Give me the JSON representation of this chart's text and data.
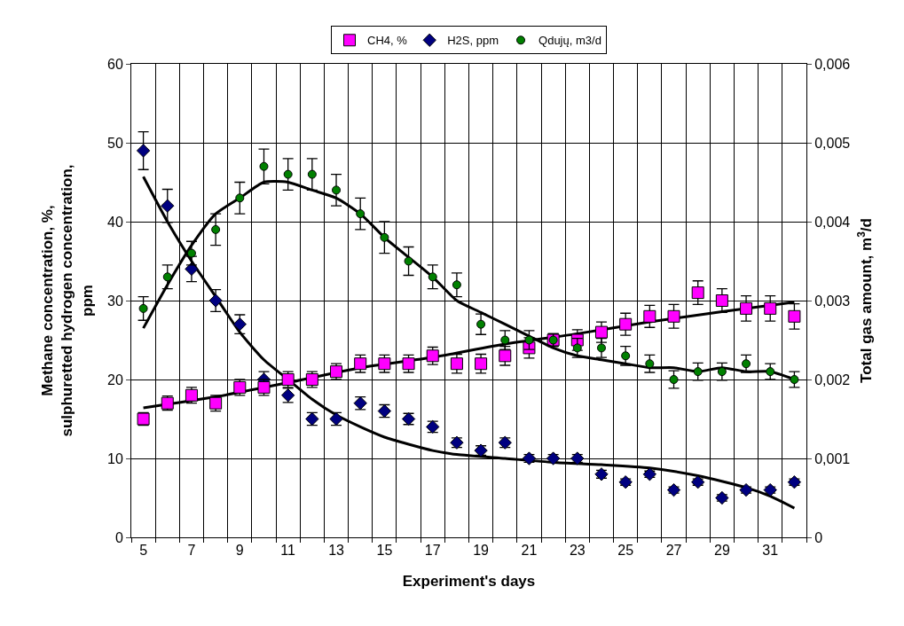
{
  "chart_data": {
    "type": "scatter",
    "xlabel": "Experiment's days",
    "ylabel": "Methane concentration, %,\nsulphuretted hydrogen concentration,\nppm",
    "y2label": "Total gas amount, m$^{3}$/d",
    "x": [
      5,
      6,
      7,
      8,
      9,
      10,
      11,
      12,
      13,
      14,
      15,
      16,
      17,
      18,
      19,
      20,
      21,
      22,
      23,
      24,
      25,
      26,
      27,
      28,
      29,
      30,
      31,
      32
    ],
    "xlim": [
      4.5,
      32.5
    ],
    "xticks": [
      5,
      7,
      9,
      11,
      13,
      15,
      17,
      19,
      21,
      23,
      25,
      27,
      29,
      31,
      {
        "value": 4.5,
        "label": null
      },
      {
        "value": 5.5,
        "label": null
      },
      {
        "value": 6.5,
        "label": null
      },
      {
        "value": 7.5,
        "label": null
      },
      {
        "value": 8.5,
        "label": null
      },
      {
        "value": 9.5,
        "label": null
      },
      {
        "value": 10.5,
        "label": null
      },
      {
        "value": 11.5,
        "label": null
      },
      {
        "value": 12.5,
        "label": null
      },
      {
        "value": 13.5,
        "label": null
      },
      {
        "value": 14.5,
        "label": null
      },
      {
        "value": 15.5,
        "label": null
      },
      {
        "value": 16.5,
        "label": null
      },
      {
        "value": 17.5,
        "label": null
      },
      {
        "value": 18.5,
        "label": null
      },
      {
        "value": 19.5,
        "label": null
      },
      {
        "value": 20.5,
        "label": null
      },
      {
        "value": 21.5,
        "label": null
      },
      {
        "value": 22.5,
        "label": null
      },
      {
        "value": 23.5,
        "label": null
      },
      {
        "value": 24.5,
        "label": null
      },
      {
        "value": 25.5,
        "label": null
      },
      {
        "value": 26.5,
        "label": null
      },
      {
        "value": 27.5,
        "label": null
      },
      {
        "value": 28.5,
        "label": null
      },
      {
        "value": 29.5,
        "label": null
      },
      {
        "value": 30.5,
        "label": null
      },
      {
        "value": 31.5,
        "label": null
      },
      {
        "value": 32.5,
        "label": null
      }
    ],
    "ylim": [
      0,
      60
    ],
    "yticks": [
      0,
      10,
      20,
      30,
      40,
      50,
      60
    ],
    "y2lim": [
      0,
      0.006
    ],
    "y2ticks": [
      0,
      {
        "value": 0.001,
        "label": "0,001"
      },
      {
        "value": 0.002,
        "label": "0,002"
      },
      {
        "value": 0.003,
        "label": "0,003"
      },
      {
        "value": 0.004,
        "label": "0,004"
      },
      {
        "value": 0.005,
        "label": "0,005"
      },
      {
        "value": 0.006,
        "label": "0,006"
      }
    ],
    "grid": true,
    "legend": "top",
    "series": [
      {
        "name": "CH4, %",
        "color": "#ff00ff",
        "marker": "square",
        "values": [
          15,
          17,
          18,
          17,
          19,
          19,
          20,
          20,
          21,
          22,
          22,
          22,
          23,
          22,
          22,
          23,
          24,
          25,
          25,
          26,
          27,
          28,
          28,
          31,
          30,
          29,
          29,
          28
        ],
        "errors": [
          0.8,
          0.9,
          1,
          1,
          1,
          1,
          1,
          1,
          1,
          1.1,
          1.1,
          1.1,
          1.1,
          1.2,
          1.2,
          1.2,
          1.3,
          0.8,
          1.3,
          1.3,
          1.4,
          1.4,
          1.5,
          1.5,
          1.5,
          1.6,
          1.6,
          1.6
        ]
      },
      {
        "name": "H2S, ppm",
        "color": "#000080",
        "marker": "diamond",
        "values": [
          49,
          42,
          34,
          30,
          27,
          20,
          18,
          15,
          15,
          17,
          16,
          15,
          14,
          12,
          11,
          12,
          10,
          10,
          10,
          8,
          7,
          8,
          6,
          7,
          5,
          6,
          6,
          7
        ],
        "errors": [
          2.4,
          2.1,
          1.6,
          1.4,
          1.2,
          1,
          0.9,
          0.8,
          0.8,
          0.8,
          0.8,
          0.7,
          0.7,
          0.6,
          0.6,
          0.6,
          0.5,
          0.5,
          0.5,
          0.5,
          0.4,
          0.4,
          0.4,
          0.4,
          0.4,
          0.4,
          0.4,
          0.4
        ]
      },
      {
        "name": "Qdujų, m3/d",
        "color": "#008000",
        "marker": "circle",
        "axis": "y2",
        "values": [
          0.0029,
          0.0033,
          0.0036,
          0.0039,
          0.0043,
          0.0047,
          0.0046,
          0.0046,
          0.0044,
          0.0041,
          0.0038,
          0.0035,
          0.0033,
          0.0032,
          0.0027,
          0.0025,
          0.0025,
          0.0025,
          0.0024,
          0.0024,
          0.0023,
          0.0022,
          0.002,
          0.0021,
          0.0021,
          0.0022,
          0.0021,
          0.002
        ],
        "errors": [
          0.00015,
          0.00015,
          0.00015,
          0.0002,
          0.0002,
          0.00022,
          0.0002,
          0.0002,
          0.0002,
          0.0002,
          0.0002,
          0.00018,
          0.00015,
          0.00015,
          0.00013,
          0.00012,
          0.00012,
          8e-05,
          0.00012,
          0.00012,
          0.00012,
          0.00011,
          0.00011,
          0.00011,
          0.00011,
          0.00011,
          0.0001,
          0.0001
        ]
      },
      {
        "type": "line",
        "color": "#000000",
        "marker": "none",
        "x": [
          5,
          8,
          11,
          14,
          17,
          20,
          23,
          26,
          29,
          32
        ],
        "values": [
          16.4,
          17.8,
          19.6,
          21.5,
          22.8,
          24.5,
          25.8,
          27.3,
          28.6,
          29.8
        ]
      },
      {
        "type": "line",
        "color": "#000000",
        "marker": "none",
        "x": [
          5,
          6,
          7,
          8,
          9,
          10,
          11,
          12,
          13,
          14,
          15,
          16,
          17,
          18,
          20,
          22,
          24,
          26,
          28,
          30,
          31,
          32
        ],
        "values": [
          45.7,
          40,
          35,
          30.5,
          26,
          22.5,
          20,
          17.5,
          15.5,
          14,
          12.7,
          11.8,
          11,
          10.5,
          10,
          9.5,
          9.2,
          8.8,
          7.8,
          6.3,
          5.2,
          3.7
        ]
      },
      {
        "type": "line",
        "color": "#000000",
        "marker": "none",
        "axis": "y2",
        "x": [
          5,
          6,
          7,
          8,
          9,
          10,
          11,
          12,
          13,
          14,
          15,
          16,
          17,
          18,
          19,
          20,
          21,
          22,
          23,
          24,
          25,
          26,
          27,
          28,
          29,
          30,
          31,
          32
        ],
        "values": [
          0.00265,
          0.0032,
          0.0037,
          0.0041,
          0.0043,
          0.0045,
          0.0045,
          0.0044,
          0.0043,
          0.0041,
          0.0038,
          0.00355,
          0.0033,
          0.003,
          0.00285,
          0.0027,
          0.00255,
          0.0024,
          0.0023,
          0.00225,
          0.0022,
          0.00215,
          0.00215,
          0.0021,
          0.00215,
          0.0021,
          0.0021,
          0.002
        ]
      }
    ]
  }
}
